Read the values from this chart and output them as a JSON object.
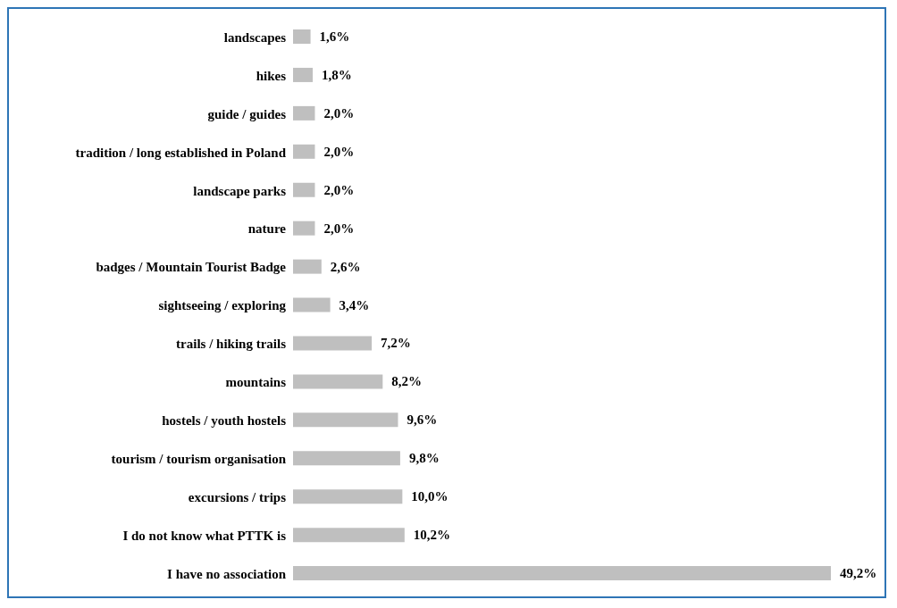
{
  "chart_data": {
    "type": "bar",
    "orientation": "horizontal",
    "categories": [
      "landscapes",
      "hikes",
      "guide / guides",
      "tradition / long established in Poland",
      "landscape parks",
      "nature",
      "badges / Mountain Tourist Badge",
      "sightseeing / exploring",
      "trails / hiking trails",
      "mountains",
      "hostels / youth hostels",
      "tourism / tourism organisation",
      "excursions / trips",
      "I do not know what PTTK is",
      "I have no association"
    ],
    "values": [
      1.6,
      1.8,
      2.0,
      2.0,
      2.0,
      2.0,
      2.6,
      3.4,
      7.2,
      8.2,
      9.6,
      9.8,
      10.0,
      10.2,
      49.2
    ],
    "value_labels": [
      "1,6%",
      "1,8%",
      "2,0%",
      "2,0%",
      "2,0%",
      "2,0%",
      "2,6%",
      "3,4%",
      "7,2%",
      "8,2%",
      "9,6%",
      "9,8%",
      "10,0%",
      "10,2%",
      "49,2%"
    ],
    "color": "#bfbfbf",
    "tick_labels": "y"
  }
}
